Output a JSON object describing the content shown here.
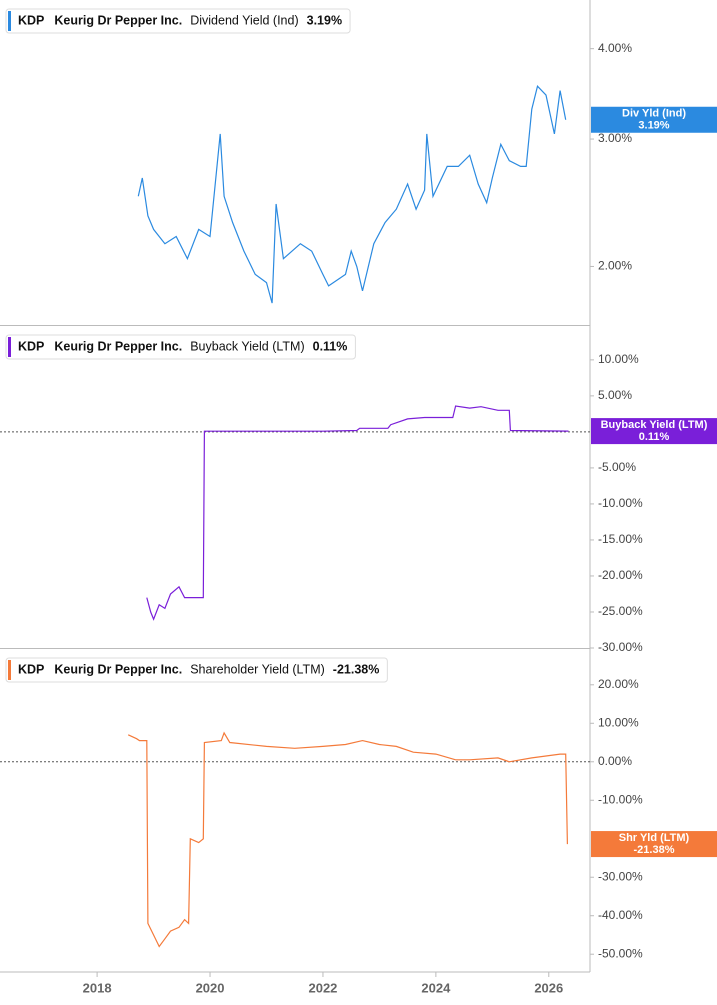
{
  "chart_data": [
    {
      "type": "line",
      "ticker": "KDP",
      "company": "Keurig Dr Pepper Inc.",
      "log": true,
      "xlim": [
        2016.28,
        2026.73
      ],
      "ylim": [
        1.66,
        4.67
      ],
      "yticks": [
        {
          "value": 4,
          "label": "4.00%"
        },
        {
          "value": 3,
          "label": "3.00%"
        },
        {
          "value": 2,
          "label": "2.00%"
        }
      ],
      "series": [
        {
          "name": "Dividend Yield (Ind)",
          "short_name": "Div Yld (Ind)",
          "last_label": "3.19%",
          "color": "#2b8ae0",
          "x": [
            2018.73,
            2018.8,
            2018.9,
            2019.0,
            2019.2,
            2019.4,
            2019.6,
            2019.8,
            2020.0,
            2020.18,
            2020.25,
            2020.4,
            2020.6,
            2020.8,
            2021.0,
            2021.1,
            2021.17,
            2021.3,
            2021.6,
            2021.8,
            2022.0,
            2022.1,
            2022.4,
            2022.5,
            2022.6,
            2022.7,
            2022.9,
            2023.1,
            2023.3,
            2023.5,
            2023.65,
            2023.8,
            2023.84,
            2023.95,
            2024.2,
            2024.4,
            2024.6,
            2024.75,
            2024.9,
            2025.0,
            2025.15,
            2025.3,
            2025.5,
            2025.6,
            2025.7,
            2025.8,
            2025.95,
            2026.1,
            2026.2,
            2026.3
          ],
          "values": [
            2.5,
            2.65,
            2.35,
            2.25,
            2.15,
            2.2,
            2.05,
            2.25,
            2.2,
            3.05,
            2.5,
            2.3,
            2.1,
            1.95,
            1.9,
            1.78,
            2.44,
            2.05,
            2.15,
            2.1,
            1.95,
            1.88,
            1.95,
            2.1,
            2.0,
            1.85,
            2.15,
            2.3,
            2.4,
            2.6,
            2.4,
            2.55,
            3.05,
            2.5,
            2.75,
            2.75,
            2.85,
            2.6,
            2.45,
            2.65,
            2.95,
            2.8,
            2.75,
            2.75,
            3.3,
            3.55,
            3.45,
            3.05,
            3.5,
            3.19
          ]
        }
      ]
    },
    {
      "type": "line",
      "ticker": "KDP",
      "company": "Keurig Dr Pepper Inc.",
      "log": false,
      "zero_line": true,
      "xlim": [
        2016.28,
        2026.73
      ],
      "ylim": [
        -30,
        14.7
      ],
      "yticks": [
        {
          "value": 10,
          "label": "10.00%"
        },
        {
          "value": 5,
          "label": "5.00%"
        },
        {
          "value": -5,
          "label": "-5.00%"
        },
        {
          "value": -10,
          "label": "-10.00%"
        },
        {
          "value": -15,
          "label": "-15.00%"
        },
        {
          "value": -20,
          "label": "-20.00%"
        },
        {
          "value": -25,
          "label": "-25.00%"
        },
        {
          "value": -30,
          "label": "-30.00%"
        }
      ],
      "series": [
        {
          "name": "Buyback Yield (LTM)",
          "short_name": "Buyback Yield (LTM)",
          "last_label": "0.11%",
          "color": "#7a1fd9",
          "x": [
            2018.88,
            2018.95,
            2019.0,
            2019.1,
            2019.2,
            2019.3,
            2019.45,
            2019.55,
            2019.7,
            2019.85,
            2019.88,
            2019.9,
            2021.0,
            2022.0,
            2022.6,
            2022.65,
            2023.15,
            2023.2,
            2023.5,
            2023.8,
            2024.3,
            2024.35,
            2024.6,
            2024.8,
            2025.1,
            2025.3,
            2025.32,
            2026.35
          ],
          "values": [
            -23,
            -25,
            -26,
            -24,
            -24.5,
            -22.5,
            -21.5,
            -23,
            -23,
            -23,
            -23,
            0.1,
            0.1,
            0.1,
            0.2,
            0.5,
            0.5,
            1,
            1.8,
            2.0,
            2.0,
            3.6,
            3.3,
            3.5,
            3.0,
            3.0,
            0.2,
            0.11
          ]
        }
      ]
    },
    {
      "type": "line",
      "ticker": "KDP",
      "company": "Keurig Dr Pepper Inc.",
      "log": false,
      "zero_line": true,
      "xlim": [
        2016.28,
        2026.73
      ],
      "ylim": [
        -54.1,
        29.3
      ],
      "xticks": [
        2018,
        2020,
        2022,
        2024,
        2026
      ],
      "yticks": [
        {
          "value": 20,
          "label": "20.00%"
        },
        {
          "value": 10,
          "label": "10.00%"
        },
        {
          "value": 0,
          "label": "0.00%"
        },
        {
          "value": -10,
          "label": "-10.00%"
        },
        {
          "value": -30,
          "label": "-30.00%"
        },
        {
          "value": -40,
          "label": "-40.00%"
        },
        {
          "value": -50,
          "label": "-50.00%"
        }
      ],
      "series": [
        {
          "name": "Shareholder Yield (LTM)",
          "short_name": "Shr Yld (LTM)",
          "last_label": "-21.38%",
          "color": "#f47a3a",
          "x": [
            2018.55,
            2018.7,
            2018.75,
            2018.88,
            2018.9,
            2019.0,
            2019.1,
            2019.2,
            2019.3,
            2019.45,
            2019.55,
            2019.62,
            2019.65,
            2019.8,
            2019.88,
            2019.9,
            2020.2,
            2020.25,
            2020.35,
            2021.0,
            2021.5,
            2022.0,
            2022.4,
            2022.7,
            2023.0,
            2023.3,
            2023.6,
            2024.0,
            2024.35,
            2024.6,
            2025.1,
            2025.3,
            2025.7,
            2026.2,
            2026.3,
            2026.33
          ],
          "values": [
            7,
            6,
            5.5,
            5.5,
            -42,
            -45,
            -48,
            -46,
            -44,
            -43,
            -41,
            -42,
            -20,
            -21,
            -20,
            5,
            5.5,
            7.5,
            5,
            4,
            3.5,
            4,
            4.5,
            5.5,
            4.5,
            4,
            2.5,
            2,
            0.5,
            0.5,
            1,
            0,
            1,
            2,
            2,
            -21.38
          ]
        }
      ]
    }
  ]
}
